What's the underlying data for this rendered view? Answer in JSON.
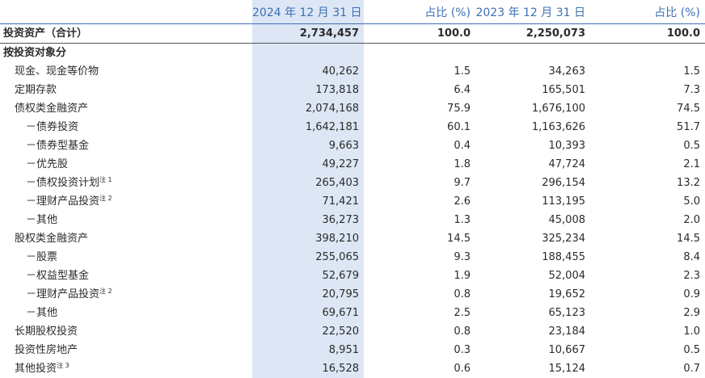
{
  "header": {
    "col_2024": "2024 年 12 月 31 日",
    "pct_2024": "占比 (%)",
    "col_2023": "2023 年 12 月 31 日",
    "pct_2023": "占比 (%)"
  },
  "total": {
    "label": "投资资产（合计）",
    "v2024": "2,734,457",
    "p2024": "100.0",
    "v2023": "2,250,073",
    "p2023": "100.0"
  },
  "section": {
    "label": "按投资对象分"
  },
  "rows": [
    {
      "label": "现金、现金等价物",
      "note": "",
      "v2024": "40,262",
      "p2024": "1.5",
      "v2023": "34,263",
      "p2023": "1.5"
    },
    {
      "label": "定期存款",
      "note": "",
      "v2024": "173,818",
      "p2024": "6.4",
      "v2023": "165,501",
      "p2023": "7.3"
    },
    {
      "label": "债权类金融资产",
      "note": "",
      "v2024": "2,074,168",
      "p2024": "75.9",
      "v2023": "1,676,100",
      "p2023": "74.5"
    },
    {
      "label": "－债券投资",
      "note": "",
      "v2024": "1,642,181",
      "p2024": "60.1",
      "v2023": "1,163,626",
      "p2023": "51.7"
    },
    {
      "label": "－债券型基金",
      "note": "",
      "v2024": "9,663",
      "p2024": "0.4",
      "v2023": "10,393",
      "p2023": "0.5"
    },
    {
      "label": "－优先股",
      "note": "",
      "v2024": "49,227",
      "p2024": "1.8",
      "v2023": "47,724",
      "p2023": "2.1"
    },
    {
      "label": "－债权投资计划",
      "note": "注 1",
      "v2024": "265,403",
      "p2024": "9.7",
      "v2023": "296,154",
      "p2023": "13.2"
    },
    {
      "label": "－理财产品投资",
      "note": "注 2",
      "v2024": "71,421",
      "p2024": "2.6",
      "v2023": "113,195",
      "p2023": "5.0"
    },
    {
      "label": "－其他",
      "note": "",
      "v2024": "36,273",
      "p2024": "1.3",
      "v2023": "45,008",
      "p2023": "2.0"
    },
    {
      "label": "股权类金融资产",
      "note": "",
      "v2024": "398,210",
      "p2024": "14.5",
      "v2023": "325,234",
      "p2023": "14.5"
    },
    {
      "label": "－股票",
      "note": "",
      "v2024": "255,065",
      "p2024": "9.3",
      "v2023": "188,455",
      "p2023": "8.4"
    },
    {
      "label": "－权益型基金",
      "note": "",
      "v2024": "52,679",
      "p2024": "1.9",
      "v2023": "52,004",
      "p2023": "2.3"
    },
    {
      "label": "－理财产品投资",
      "note": "注 2",
      "v2024": "20,795",
      "p2024": "0.8",
      "v2023": "19,652",
      "p2023": "0.9"
    },
    {
      "label": "－其他",
      "note": "",
      "v2024": "69,671",
      "p2024": "2.5",
      "v2023": "65,123",
      "p2023": "2.9"
    },
    {
      "label": "长期股权投资",
      "note": "",
      "v2024": "22,520",
      "p2024": "0.8",
      "v2023": "23,184",
      "p2023": "1.0"
    },
    {
      "label": "投资性房地产",
      "note": "",
      "v2024": "8,951",
      "p2024": "0.3",
      "v2023": "10,667",
      "p2023": "0.5"
    },
    {
      "label": "其他投资",
      "note": "注 3",
      "v2024": "16,528",
      "p2024": "0.6",
      "v2023": "15,124",
      "p2023": "0.7"
    }
  ]
}
